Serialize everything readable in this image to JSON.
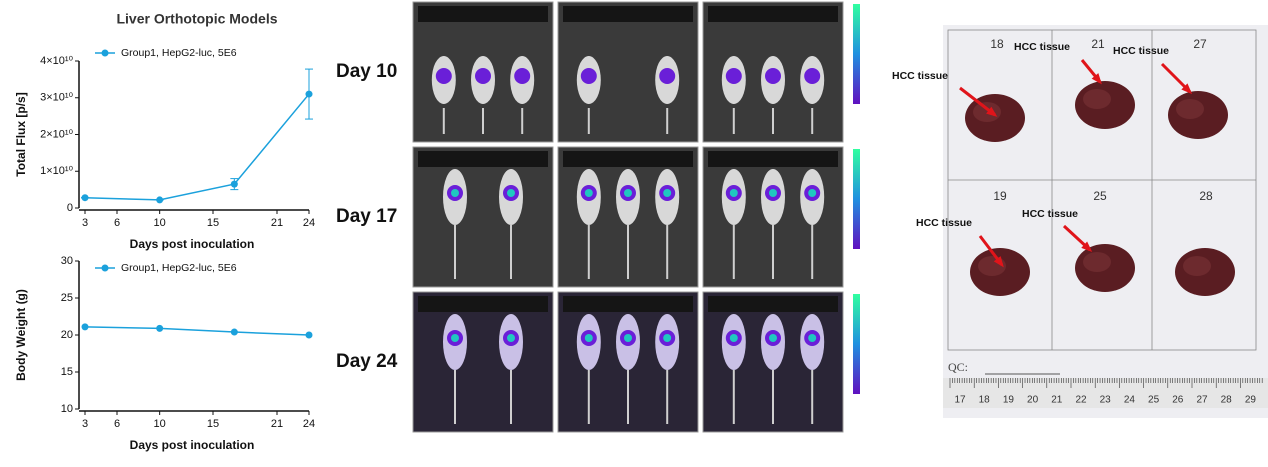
{
  "chart_data": [
    {
      "type": "line",
      "title": "Liver Orthotopic Models",
      "x_label": "Days post inoculation",
      "y_label": "Total Flux [p/s]",
      "x": [
        3,
        10,
        17,
        24
      ],
      "series": [
        {
          "name": "Group1, HepG2-luc, 5E6",
          "color": "#1ba1dc",
          "values": [
            2800000000,
            2200000000,
            6500000000,
            31000000000
          ],
          "errors": [
            0,
            0,
            1500000000,
            6800000000
          ]
        }
      ],
      "xlim": [
        3,
        24
      ],
      "xticks": [
        3,
        6,
        10,
        15,
        21,
        24
      ],
      "ylim": [
        0,
        40000000000
      ],
      "yticks": [
        0,
        {
          "value": 10000000000,
          "label": "1×10¹⁰"
        },
        {
          "value": 20000000000,
          "label": "2×10¹⁰"
        },
        {
          "value": 30000000000,
          "label": "3×10¹⁰"
        },
        {
          "value": 40000000000,
          "label": "4×10¹⁰"
        }
      ]
    },
    {
      "type": "line",
      "x_label": "Days post inoculation",
      "y_label": "Body Weight (g)",
      "x": [
        3,
        10,
        17,
        24
      ],
      "series": [
        {
          "name": "Group1, HepG2-luc, 5E6",
          "color": "#1ba1dc",
          "values": [
            21.1,
            20.9,
            20.4,
            20.0
          ]
        }
      ],
      "xlim": [
        3,
        24
      ],
      "xticks": [
        3,
        6,
        10,
        15,
        21,
        24
      ],
      "ylim": [
        10,
        30
      ],
      "yticks": [
        10,
        15,
        20,
        25,
        30
      ]
    }
  ],
  "imaging": {
    "days": [
      "Day 10",
      "Day 17",
      "Day 24"
    ]
  },
  "photo": {
    "sample_ids": [
      "18",
      "21",
      "27",
      "19",
      "25",
      "28"
    ],
    "annotations": [
      "HCC tissue",
      "HCC tissue",
      "HCC tissue",
      "HCC tissue",
      "HCC tissue"
    ],
    "qc_label": "QC:",
    "ruler": [
      17,
      18,
      19,
      20,
      21,
      22,
      23,
      24,
      25,
      26,
      27,
      28,
      29
    ]
  }
}
